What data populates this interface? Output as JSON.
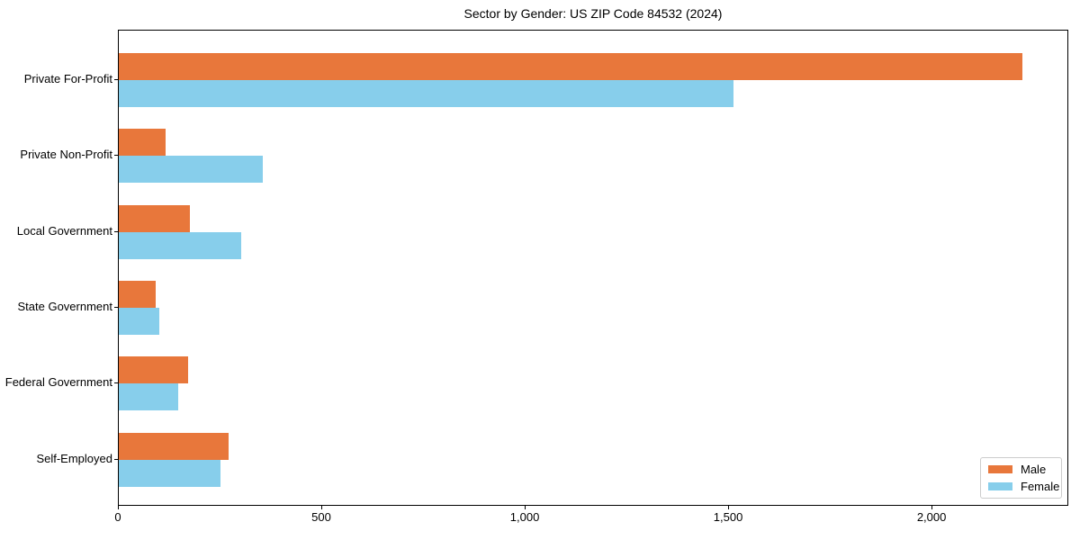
{
  "chart_data": {
    "type": "bar",
    "orientation": "horizontal",
    "title": "Sector by Gender: US ZIP Code 84532 (2024)",
    "categories": [
      "Private For-Profit",
      "Private Non-Profit",
      "Local Government",
      "State Government",
      "Federal Government",
      "Self-Employed"
    ],
    "series": [
      {
        "name": "Male",
        "color": "#E8773B",
        "values": [
          2220,
          115,
          175,
          90,
          170,
          270
        ]
      },
      {
        "name": "Female",
        "color": "#87CEEB",
        "values": [
          1510,
          355,
          300,
          100,
          145,
          250
        ]
      }
    ],
    "xlabel": "",
    "ylabel": "",
    "xlim": [
      0,
      2336
    ],
    "xticks": [
      {
        "value": 0,
        "label": "0"
      },
      {
        "value": 500,
        "label": "500"
      },
      {
        "value": 1000,
        "label": "1,000"
      },
      {
        "value": 1500,
        "label": "1,500"
      },
      {
        "value": 2000,
        "label": "2,000"
      }
    ],
    "grid": false,
    "axis_color": "#000000",
    "background": "#ffffff",
    "legend": {
      "position": "lower-right",
      "entries": [
        {
          "label": "Male",
          "color": "#E8773B"
        },
        {
          "label": "Female",
          "color": "#87CEEB"
        }
      ]
    }
  }
}
